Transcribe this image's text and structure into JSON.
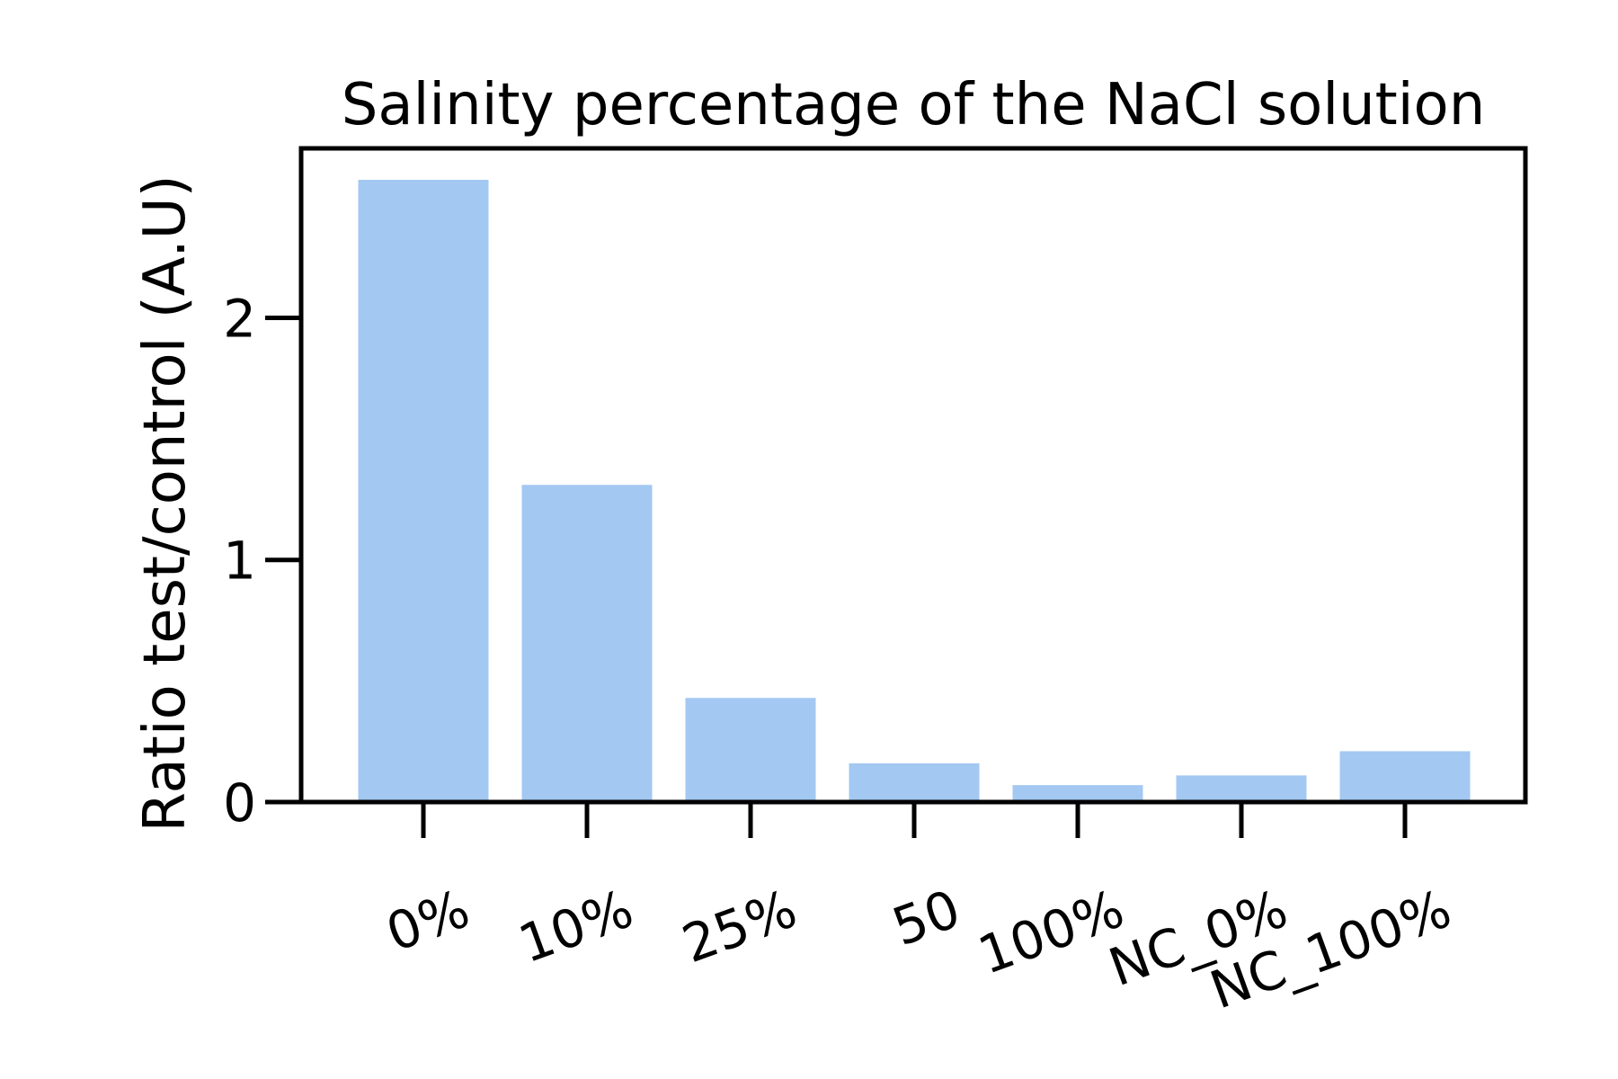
{
  "chart_data": {
    "type": "bar",
    "title": "Salinity percentage of the NaCl solution",
    "xlabel": "",
    "ylabel": "Ratio test/control (A.U)",
    "categories": [
      "0%",
      "10%",
      "25%",
      "50",
      "100%",
      "NC_0%",
      "NC_100%"
    ],
    "values": [
      2.57,
      1.31,
      0.43,
      0.16,
      0.07,
      0.11,
      0.21
    ],
    "ylim": [
      0,
      2.7
    ],
    "yticks": [
      0,
      1,
      2
    ],
    "bar_color": "#a3c8f2",
    "grid": false,
    "legend": "none"
  }
}
